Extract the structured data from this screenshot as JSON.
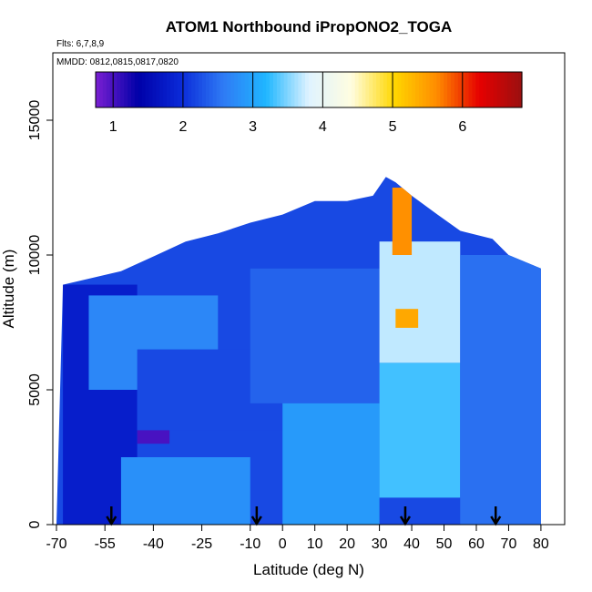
{
  "chart_data": {
    "type": "heatmap",
    "title": "ATOM1 Northbound iPropONO2_TOGA",
    "annotations": {
      "flights": "Flts: 6,7,8,9",
      "dates": "MMDD: 0812,0815,0817,0820"
    },
    "xlabel": "Latitude (deg N)",
    "ylabel": "Altitude (m)",
    "xlim": [
      -70,
      82
    ],
    "ylim": [
      0,
      17500
    ],
    "x_ticks": [
      -70,
      -55,
      -40,
      -25,
      -10,
      0,
      10,
      20,
      30,
      40,
      50,
      60,
      70,
      80
    ],
    "x_tick_labels": [
      "-70",
      "-55",
      "-40",
      "-25",
      "-10",
      "0",
      "10",
      "20",
      "30",
      "40",
      "50",
      "60",
      "70",
      "80"
    ],
    "y_ticks": [
      0,
      5000,
      10000,
      15000
    ],
    "y_tick_labels": [
      "0",
      "5000",
      "10000",
      "15000"
    ],
    "colorbar": {
      "range": [
        0.75,
        6.85
      ],
      "ticks": [
        1,
        2,
        3,
        4,
        5,
        6
      ],
      "tick_labels": [
        "1",
        "2",
        "3",
        "4",
        "5",
        "6"
      ],
      "colors": [
        "#7a1fd2",
        "#0000a8",
        "#0a2ad8",
        "#2f7bf5",
        "#1fb6ff",
        "#dff3ff",
        "#fffde0",
        "#ffd700",
        "#ff8c00",
        "#e60000",
        "#9a1010"
      ]
    },
    "arrows_latitude": [
      -53,
      -8,
      38,
      66
    ],
    "profile_top_altitude": [
      [
        -70,
        0
      ],
      [
        -68,
        8900
      ],
      [
        -50,
        9400
      ],
      [
        -39,
        10000
      ],
      [
        -30,
        10500
      ],
      [
        -20,
        10800
      ],
      [
        -10,
        11200
      ],
      [
        0,
        11500
      ],
      [
        10,
        12000
      ],
      [
        20,
        12000
      ],
      [
        28,
        12200
      ],
      [
        32,
        12900
      ],
      [
        35,
        12700
      ],
      [
        40,
        12200
      ],
      [
        48,
        11500
      ],
      [
        55,
        10900
      ],
      [
        65,
        10600
      ],
      [
        70,
        10000
      ],
      [
        80,
        9500
      ],
      [
        80,
        0
      ]
    ],
    "regions": [
      {
        "x": [
          -68,
          -45
        ],
        "y": [
          0,
          8900
        ],
        "value": 1.8
      },
      {
        "x": [
          -60,
          -20
        ],
        "y": [
          5000,
          8500
        ],
        "value": 2.7
      },
      {
        "x": [
          -45,
          0
        ],
        "y": [
          3500,
          6500
        ],
        "value": 2.2
      },
      {
        "x": [
          -50,
          -10
        ],
        "y": [
          0,
          2500
        ],
        "value": 2.8
      },
      {
        "x": [
          -10,
          30
        ],
        "y": [
          4500,
          9500
        ],
        "value": 2.4
      },
      {
        "x": [
          0,
          30
        ],
        "y": [
          0,
          4500
        ],
        "value": 2.9
      },
      {
        "x": [
          30,
          55
        ],
        "y": [
          6000,
          10500
        ],
        "value": 3.7
      },
      {
        "x": [
          30,
          55
        ],
        "y": [
          1000,
          6000
        ],
        "value": 3.3
      },
      {
        "x": [
          55,
          80
        ],
        "y": [
          0,
          10000
        ],
        "value": 2.5
      },
      {
        "x": [
          34,
          40
        ],
        "y": [
          10000,
          12500
        ],
        "value": 5.6
      },
      {
        "x": [
          35,
          42
        ],
        "y": [
          7300,
          8000
        ],
        "value": 5.4
      },
      {
        "x": [
          -45,
          -35
        ],
        "y": [
          3000,
          3500
        ],
        "value": 1.0
      }
    ]
  }
}
